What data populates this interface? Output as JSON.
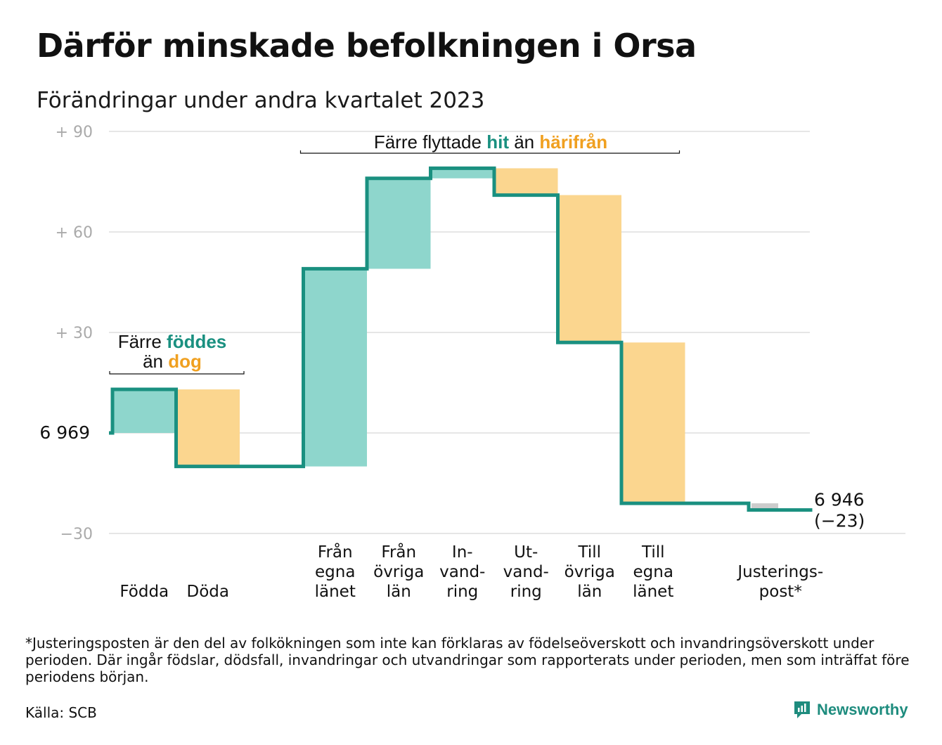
{
  "title": "Därför minskade befolkningen i Orsa",
  "subtitle": "Förändringar under andra kvartalet 2023",
  "colors": {
    "line": "#1a9080",
    "increase": "#8ed6cc",
    "decrease": "#fbd68f",
    "adjustment": "#cccccc",
    "teal_text": "#1a9080",
    "orange_text": "#f0a020",
    "grid": "#dddddd"
  },
  "chart_data": {
    "type": "waterfall",
    "start_value": 6969,
    "start_label": "6  969",
    "end_value": 6946,
    "end_label": "6 946",
    "end_change_label": "(−23)",
    "y_axis": {
      "min": -30,
      "max": 90,
      "ticks": [
        -30,
        0,
        30,
        60,
        90
      ],
      "tick_labels": [
        "−30",
        "",
        "+  30",
        "+  60",
        "+  90"
      ],
      "unit": "change from start"
    },
    "steps": [
      {
        "label_lines": [
          "Födda"
        ],
        "delta": 13,
        "kind": "increase"
      },
      {
        "label_lines": [
          "Döda"
        ],
        "delta": -23,
        "kind": "decrease"
      },
      {
        "label_lines": [],
        "delta": 0,
        "kind": "spacer"
      },
      {
        "label_lines": [
          "Från",
          "egna",
          "länet"
        ],
        "delta": 59,
        "kind": "increase"
      },
      {
        "label_lines": [
          "Från",
          "övriga",
          "län"
        ],
        "delta": 27,
        "kind": "increase"
      },
      {
        "label_lines": [
          "In-",
          "vand-",
          "ring"
        ],
        "delta": 3,
        "kind": "increase"
      },
      {
        "label_lines": [
          "Ut-",
          "vand-",
          "ring"
        ],
        "delta": -8,
        "kind": "decrease"
      },
      {
        "label_lines": [
          "Till",
          "övriga",
          "län"
        ],
        "delta": -44,
        "kind": "decrease"
      },
      {
        "label_lines": [
          "Till",
          "egna",
          "länet"
        ],
        "delta": -48,
        "kind": "decrease"
      },
      {
        "label_lines": [],
        "delta": 0,
        "kind": "spacer"
      },
      {
        "label_lines": [
          "Justerings-",
          "post*"
        ],
        "delta": -2,
        "kind": "adjustment"
      }
    ],
    "annotations": [
      {
        "lines": [
          [
            {
              "text": "Färre ",
              "color": "default"
            },
            {
              "text": "föddes",
              "color": "teal"
            }
          ],
          [
            {
              "text": "än ",
              "color": "default"
            },
            {
              "text": "dog",
              "color": "orange"
            }
          ]
        ]
      },
      {
        "lines": [
          [
            {
              "text": "Färre flyttade ",
              "color": "default"
            },
            {
              "text": "hit",
              "color": "teal"
            },
            {
              "text": " än ",
              "color": "default"
            },
            {
              "text": "härifrån",
              "color": "orange"
            }
          ]
        ]
      }
    ]
  },
  "footnote": "*Justeringsposten är den del av folkökningen som inte kan förklaras av födelseöverskott och invandringsöverskott under perioden. Där ingår födslar, dödsfall, invandringar och utvandringar som rapporterats under perioden, men som inträffat före periodens början.",
  "source": "Källa: SCB",
  "brand": "Newsworthy",
  "brand_icon": "newsworthy-chart-icon"
}
